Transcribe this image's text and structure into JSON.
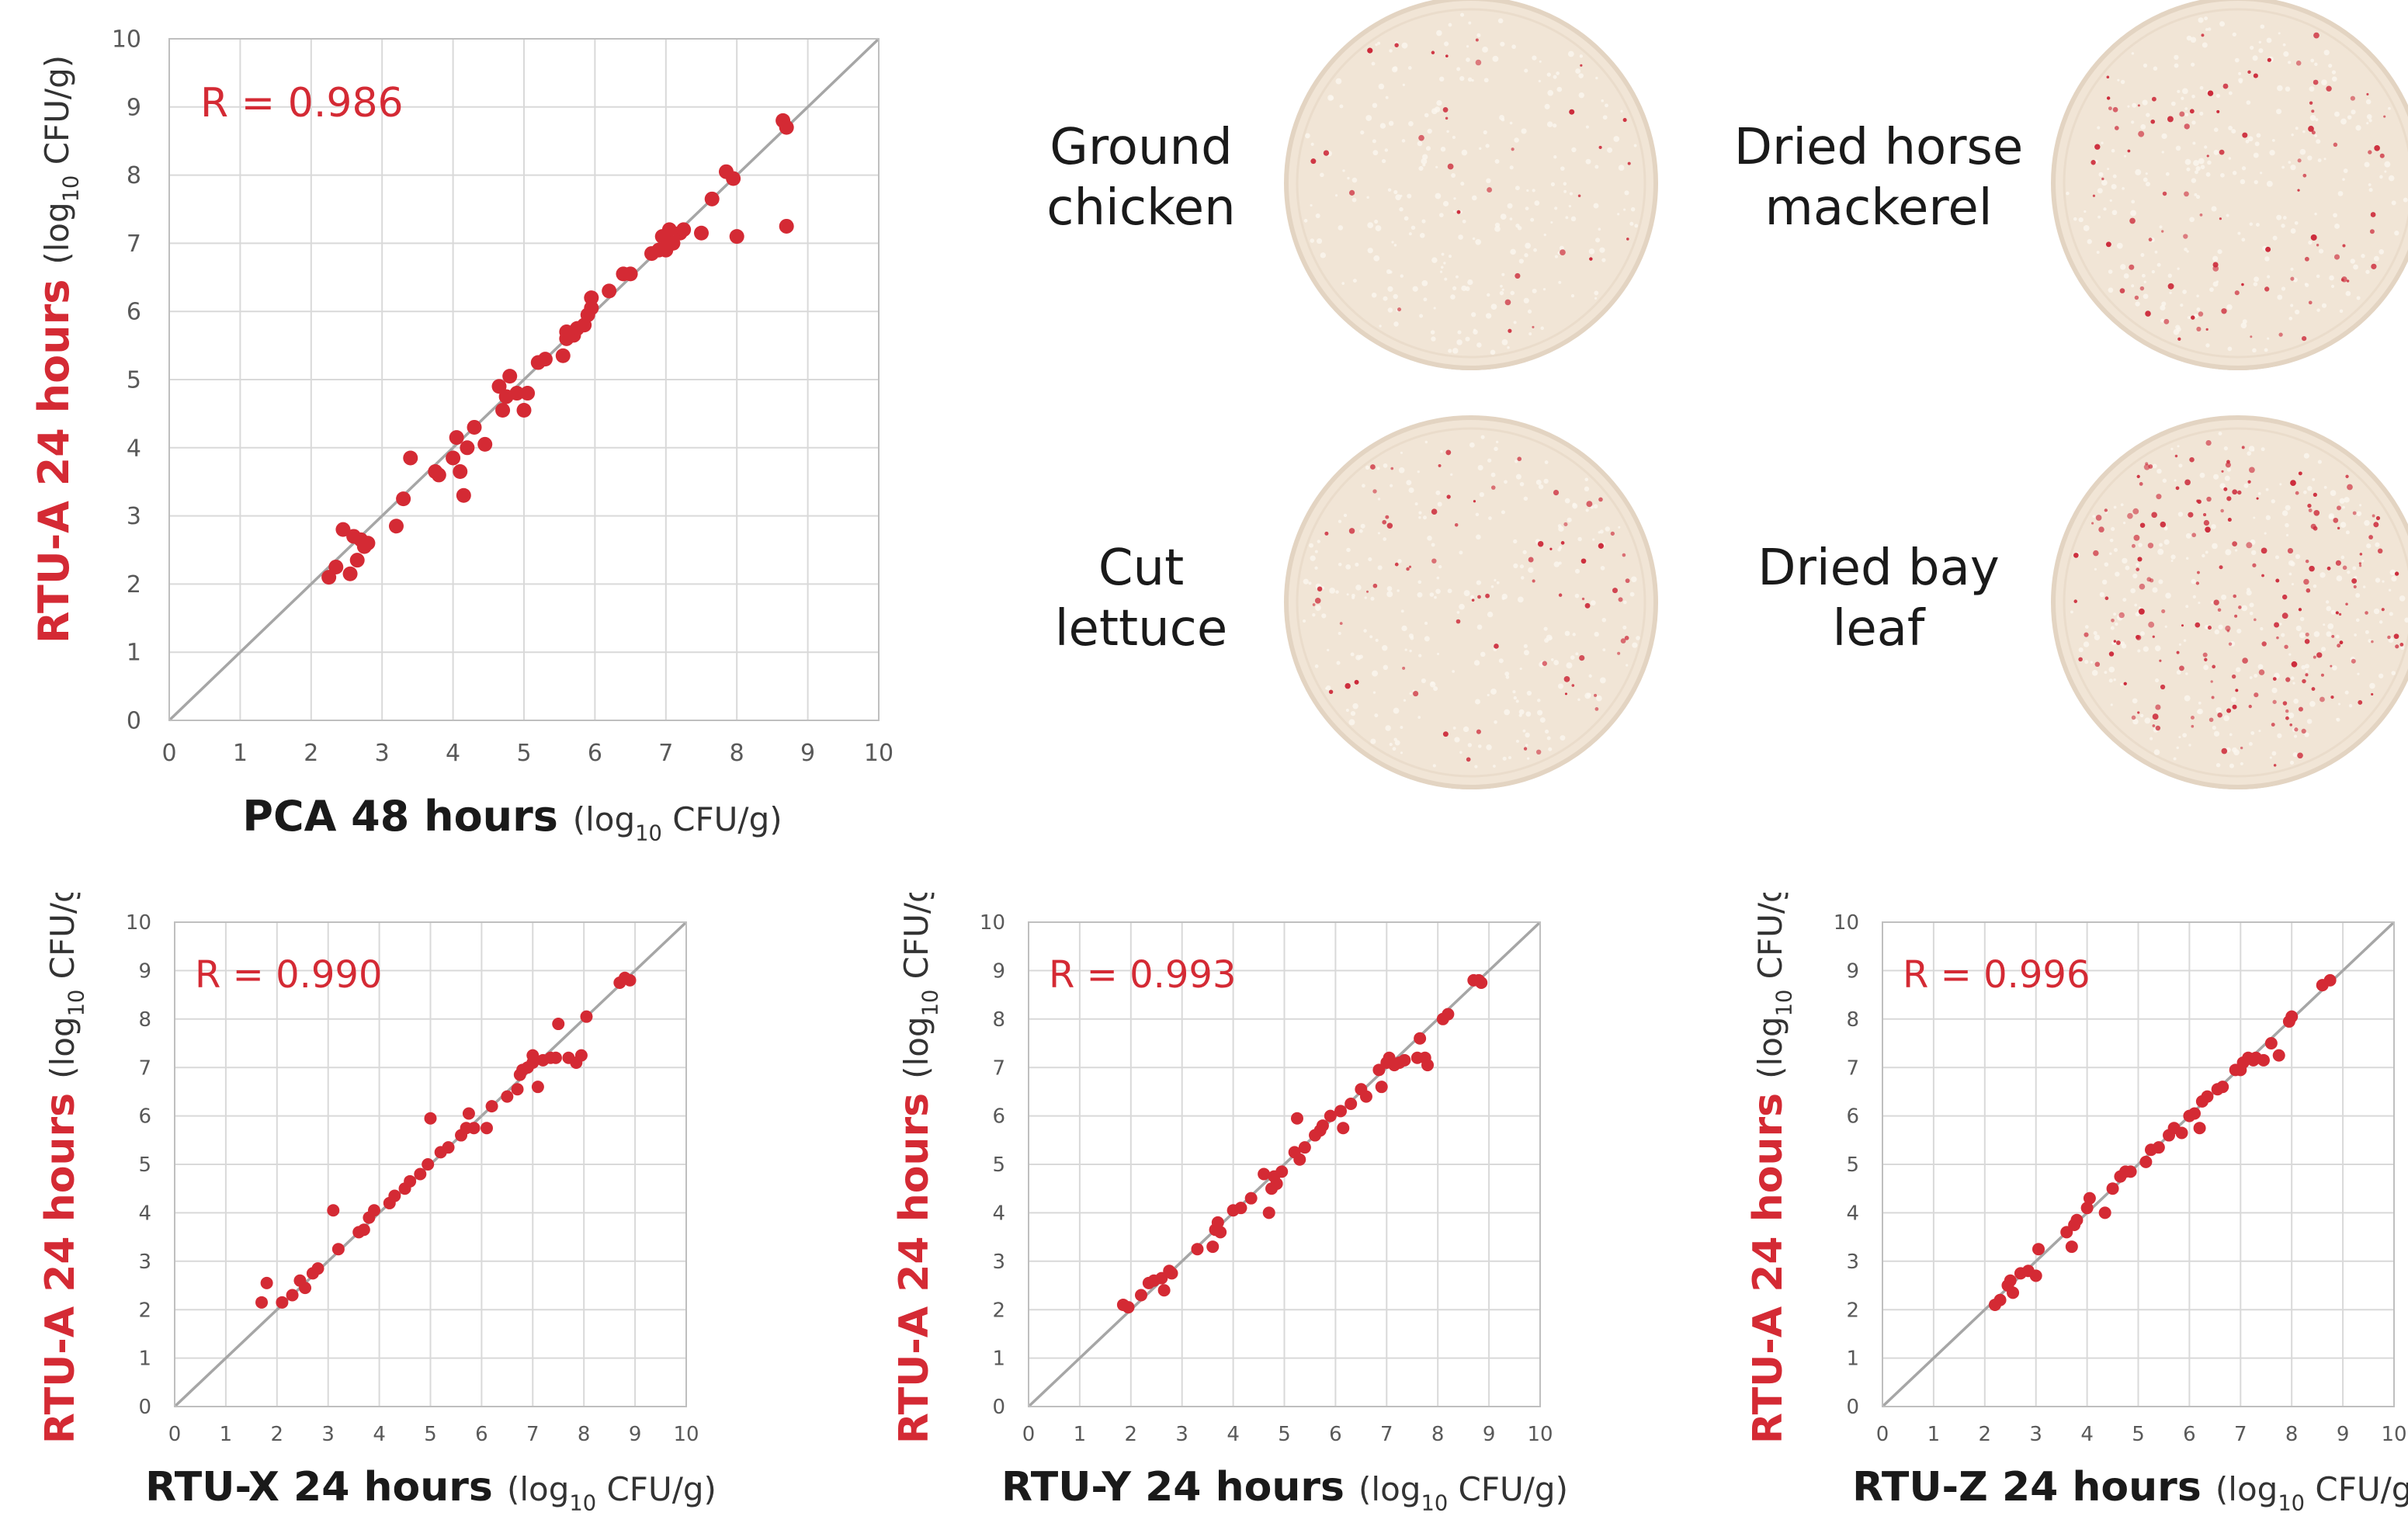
{
  "colors": {
    "accent": "#d42a34",
    "axis_text": "#595959",
    "label_text": "#1a1a1a",
    "grid": "#d9d9d9",
    "identity_line": "#a6a6a6",
    "plate": "#f1e5d6",
    "plate_rim": "#e3d4c2",
    "colony": "#cc2a3a"
  },
  "plates": [
    {
      "line1": "Ground",
      "line2": "chicken",
      "colony_density": 30
    },
    {
      "line1": "Dried horse",
      "line2": "mackerel",
      "colony_density": 90
    },
    {
      "line1": "Cut",
      "line2": "lettuce",
      "colony_density": 70
    },
    {
      "line1": "Dried bay",
      "line2": "leaf",
      "colony_density": 200
    }
  ],
  "chart_data": [
    {
      "type": "scatter",
      "r_label": "R = 0.986",
      "xlabel_bold": "PCA 48 hours",
      "ylabel_bold": "RTU-A 24 hours",
      "unit_prefix": "(log",
      "unit_sub": "10",
      "unit_suffix": " CFU/g)",
      "xlim": [
        0,
        10
      ],
      "ylim": [
        0,
        10
      ],
      "x_ticks": [
        "0",
        "1",
        "2",
        "3",
        "4",
        "5",
        "6",
        "7",
        "8",
        "9",
        "10"
      ],
      "y_ticks": [
        "0",
        "1",
        "2",
        "3",
        "4",
        "5",
        "6",
        "7",
        "8",
        "9",
        "10"
      ],
      "identity_line": true,
      "grid": true,
      "points": [
        [
          2.25,
          2.1
        ],
        [
          2.35,
          2.25
        ],
        [
          2.45,
          2.8
        ],
        [
          2.55,
          2.15
        ],
        [
          2.6,
          2.7
        ],
        [
          2.65,
          2.35
        ],
        [
          2.7,
          2.65
        ],
        [
          2.75,
          2.55
        ],
        [
          2.8,
          2.6
        ],
        [
          3.2,
          2.85
        ],
        [
          3.3,
          3.25
        ],
        [
          3.4,
          3.85
        ],
        [
          3.75,
          3.65
        ],
        [
          3.8,
          3.6
        ],
        [
          4.0,
          3.85
        ],
        [
          4.05,
          4.15
        ],
        [
          4.1,
          3.65
        ],
        [
          4.15,
          3.3
        ],
        [
          4.2,
          4.0
        ],
        [
          4.3,
          4.3
        ],
        [
          4.45,
          4.05
        ],
        [
          4.65,
          4.9
        ],
        [
          4.7,
          4.55
        ],
        [
          4.75,
          4.75
        ],
        [
          4.8,
          5.05
        ],
        [
          4.9,
          4.8
        ],
        [
          5.0,
          4.55
        ],
        [
          5.05,
          4.8
        ],
        [
          5.2,
          5.25
        ],
        [
          5.3,
          5.3
        ],
        [
          5.55,
          5.35
        ],
        [
          5.6,
          5.6
        ],
        [
          5.6,
          5.7
        ],
        [
          5.7,
          5.65
        ],
        [
          5.75,
          5.75
        ],
        [
          5.85,
          5.8
        ],
        [
          5.9,
          5.95
        ],
        [
          5.95,
          6.2
        ],
        [
          5.95,
          6.05
        ],
        [
          6.2,
          6.3
        ],
        [
          6.4,
          6.55
        ],
        [
          6.5,
          6.55
        ],
        [
          6.8,
          6.85
        ],
        [
          6.9,
          6.9
        ],
        [
          6.95,
          7.1
        ],
        [
          7.0,
          6.9
        ],
        [
          7.05,
          7.2
        ],
        [
          7.1,
          7.0
        ],
        [
          7.2,
          7.15
        ],
        [
          7.25,
          7.2
        ],
        [
          7.5,
          7.15
        ],
        [
          7.65,
          7.65
        ],
        [
          7.85,
          8.05
        ],
        [
          7.95,
          7.95
        ],
        [
          8.0,
          7.1
        ],
        [
          8.65,
          8.8
        ],
        [
          8.7,
          8.7
        ],
        [
          8.7,
          7.25
        ]
      ]
    },
    {
      "type": "scatter",
      "r_label": "R = 0.990",
      "xlabel_bold": "RTU-X 24 hours",
      "ylabel_bold": "RTU-A 24 hours",
      "unit_prefix": "(log",
      "unit_sub": "10",
      "unit_suffix": " CFU/g)",
      "xlim": [
        0,
        10
      ],
      "ylim": [
        0,
        10
      ],
      "x_ticks": [
        "0",
        "1",
        "2",
        "3",
        "4",
        "5",
        "6",
        "7",
        "8",
        "9",
        "10"
      ],
      "y_ticks": [
        "0",
        "1",
        "2",
        "3",
        "4",
        "5",
        "6",
        "7",
        "8",
        "9",
        "10"
      ],
      "identity_line": true,
      "grid": true,
      "points": [
        [
          1.7,
          2.15
        ],
        [
          1.8,
          2.55
        ],
        [
          2.1,
          2.15
        ],
        [
          2.3,
          2.3
        ],
        [
          2.45,
          2.6
        ],
        [
          2.55,
          2.45
        ],
        [
          2.7,
          2.75
        ],
        [
          2.8,
          2.85
        ],
        [
          3.1,
          4.05
        ],
        [
          3.2,
          3.25
        ],
        [
          3.6,
          3.6
        ],
        [
          3.7,
          3.65
        ],
        [
          3.8,
          3.9
        ],
        [
          3.9,
          4.05
        ],
        [
          4.2,
          4.2
        ],
        [
          4.3,
          4.35
        ],
        [
          4.5,
          4.5
        ],
        [
          4.6,
          4.65
        ],
        [
          4.8,
          4.8
        ],
        [
          4.95,
          5.0
        ],
        [
          5.0,
          5.95
        ],
        [
          5.2,
          5.25
        ],
        [
          5.35,
          5.35
        ],
        [
          5.6,
          5.6
        ],
        [
          5.7,
          5.75
        ],
        [
          5.75,
          6.05
        ],
        [
          5.85,
          5.75
        ],
        [
          6.1,
          5.75
        ],
        [
          6.2,
          6.2
        ],
        [
          6.5,
          6.4
        ],
        [
          6.7,
          6.55
        ],
        [
          6.75,
          6.85
        ],
        [
          6.8,
          6.95
        ],
        [
          6.9,
          7.0
        ],
        [
          7.0,
          7.1
        ],
        [
          7.0,
          7.25
        ],
        [
          7.1,
          6.6
        ],
        [
          7.2,
          7.15
        ],
        [
          7.35,
          7.2
        ],
        [
          7.45,
          7.2
        ],
        [
          7.5,
          7.9
        ],
        [
          7.7,
          7.2
        ],
        [
          7.85,
          7.1
        ],
        [
          7.95,
          7.25
        ],
        [
          8.05,
          8.05
        ],
        [
          8.7,
          8.75
        ],
        [
          8.8,
          8.85
        ],
        [
          8.9,
          8.8
        ]
      ]
    },
    {
      "type": "scatter",
      "r_label": "R = 0.993",
      "xlabel_bold": "RTU-Y 24 hours",
      "ylabel_bold": "RTU-A 24 hours",
      "unit_prefix": "(log",
      "unit_sub": "10",
      "unit_suffix": " CFU/g)",
      "xlim": [
        0,
        10
      ],
      "ylim": [
        0,
        10
      ],
      "x_ticks": [
        "0",
        "1",
        "2",
        "3",
        "4",
        "5",
        "6",
        "7",
        "8",
        "9",
        "10"
      ],
      "y_ticks": [
        "0",
        "1",
        "2",
        "3",
        "4",
        "5",
        "6",
        "7",
        "8",
        "9",
        "10"
      ],
      "identity_line": true,
      "grid": true,
      "points": [
        [
          1.85,
          2.1
        ],
        [
          1.95,
          2.05
        ],
        [
          2.2,
          2.3
        ],
        [
          2.35,
          2.55
        ],
        [
          2.45,
          2.6
        ],
        [
          2.6,
          2.65
        ],
        [
          2.65,
          2.4
        ],
        [
          2.75,
          2.8
        ],
        [
          2.8,
          2.75
        ],
        [
          3.3,
          3.25
        ],
        [
          3.6,
          3.3
        ],
        [
          3.65,
          3.65
        ],
        [
          3.7,
          3.8
        ],
        [
          3.75,
          3.6
        ],
        [
          4.0,
          4.05
        ],
        [
          4.15,
          4.1
        ],
        [
          4.35,
          4.3
        ],
        [
          4.6,
          4.8
        ],
        [
          4.7,
          4.0
        ],
        [
          4.75,
          4.5
        ],
        [
          4.8,
          4.75
        ],
        [
          4.85,
          4.6
        ],
        [
          4.95,
          4.85
        ],
        [
          5.2,
          5.25
        ],
        [
          5.25,
          5.95
        ],
        [
          5.3,
          5.1
        ],
        [
          5.4,
          5.35
        ],
        [
          5.6,
          5.6
        ],
        [
          5.7,
          5.7
        ],
        [
          5.75,
          5.8
        ],
        [
          5.9,
          6.0
        ],
        [
          6.1,
          6.1
        ],
        [
          6.15,
          5.75
        ],
        [
          6.3,
          6.25
        ],
        [
          6.5,
          6.55
        ],
        [
          6.6,
          6.4
        ],
        [
          6.85,
          6.95
        ],
        [
          6.9,
          6.6
        ],
        [
          7.0,
          7.1
        ],
        [
          7.05,
          7.2
        ],
        [
          7.15,
          7.05
        ],
        [
          7.25,
          7.1
        ],
        [
          7.35,
          7.15
        ],
        [
          7.6,
          7.2
        ],
        [
          7.65,
          7.6
        ],
        [
          7.75,
          7.2
        ],
        [
          7.8,
          7.05
        ],
        [
          8.1,
          8.0
        ],
        [
          8.2,
          8.1
        ],
        [
          8.7,
          8.8
        ],
        [
          8.8,
          8.8
        ],
        [
          8.85,
          8.75
        ]
      ]
    },
    {
      "type": "scatter",
      "r_label": "R = 0.996",
      "xlabel_bold": "RTU-Z 24 hours",
      "ylabel_bold": "RTU-A 24 hours",
      "unit_prefix": "(log",
      "unit_sub": "10",
      "unit_suffix": " CFU/g)",
      "xlim": [
        0,
        10
      ],
      "ylim": [
        0,
        10
      ],
      "x_ticks": [
        "0",
        "1",
        "2",
        "3",
        "4",
        "5",
        "6",
        "7",
        "8",
        "9",
        "10"
      ],
      "y_ticks": [
        "0",
        "1",
        "2",
        "3",
        "4",
        "5",
        "6",
        "7",
        "8",
        "9",
        "10"
      ],
      "identity_line": true,
      "grid": true,
      "points": [
        [
          2.2,
          2.1
        ],
        [
          2.3,
          2.2
        ],
        [
          2.45,
          2.5
        ],
        [
          2.5,
          2.6
        ],
        [
          2.55,
          2.35
        ],
        [
          2.7,
          2.75
        ],
        [
          2.85,
          2.8
        ],
        [
          3.0,
          2.7
        ],
        [
          3.05,
          3.25
        ],
        [
          3.6,
          3.6
        ],
        [
          3.7,
          3.3
        ],
        [
          3.75,
          3.75
        ],
        [
          3.8,
          3.85
        ],
        [
          4.0,
          4.1
        ],
        [
          4.05,
          4.3
        ],
        [
          4.35,
          4.0
        ],
        [
          4.5,
          4.5
        ],
        [
          4.65,
          4.75
        ],
        [
          4.75,
          4.85
        ],
        [
          4.85,
          4.85
        ],
        [
          5.15,
          5.05
        ],
        [
          5.25,
          5.3
        ],
        [
          5.4,
          5.35
        ],
        [
          5.6,
          5.6
        ],
        [
          5.7,
          5.75
        ],
        [
          5.85,
          5.65
        ],
        [
          6.0,
          6.0
        ],
        [
          6.1,
          6.05
        ],
        [
          6.2,
          5.75
        ],
        [
          6.25,
          6.3
        ],
        [
          6.35,
          6.4
        ],
        [
          6.55,
          6.55
        ],
        [
          6.65,
          6.6
        ],
        [
          6.9,
          6.95
        ],
        [
          7.0,
          6.95
        ],
        [
          7.05,
          7.1
        ],
        [
          7.15,
          7.2
        ],
        [
          7.25,
          7.15
        ],
        [
          7.3,
          7.2
        ],
        [
          7.45,
          7.15
        ],
        [
          7.6,
          7.5
        ],
        [
          7.75,
          7.25
        ],
        [
          7.95,
          7.95
        ],
        [
          8.0,
          8.05
        ],
        [
          8.6,
          8.7
        ],
        [
          8.75,
          8.8
        ]
      ]
    }
  ]
}
